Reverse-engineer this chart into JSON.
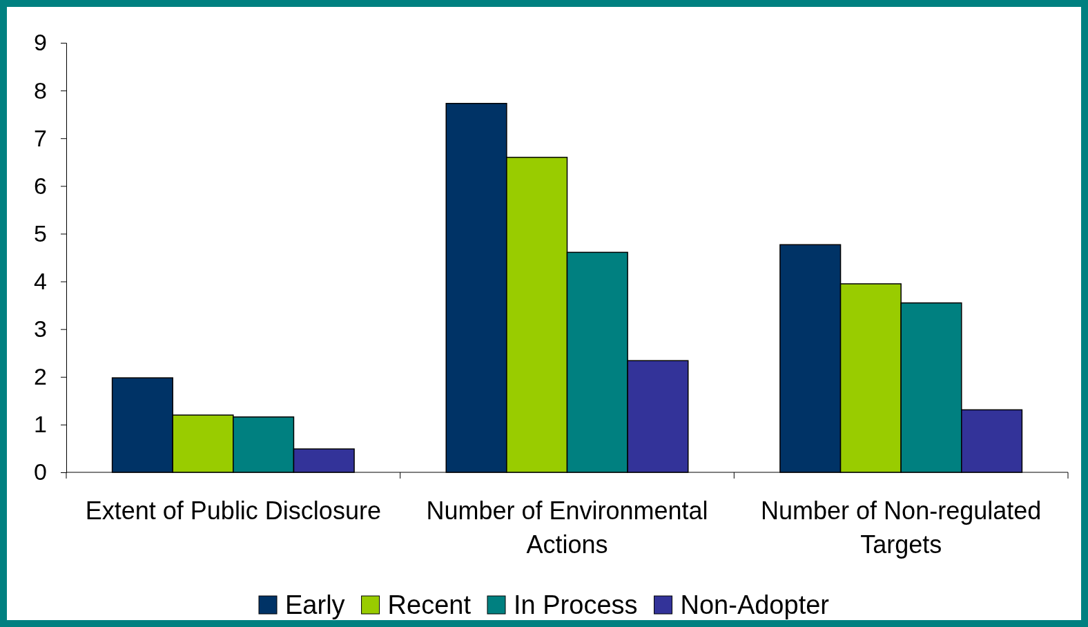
{
  "chart_data": {
    "type": "bar",
    "categories": [
      "Extent of Public Disclosure",
      "Number of Environmental Actions",
      "Number of Non-regulated Targets"
    ],
    "series": [
      {
        "name": "Early",
        "color": "#003366",
        "values": [
          1.98,
          7.73,
          4.77
        ]
      },
      {
        "name": "Recent",
        "color": "#99cc00",
        "values": [
          1.2,
          6.6,
          3.95
        ]
      },
      {
        "name": "In Process",
        "color": "#008080",
        "values": [
          1.16,
          4.61,
          3.55
        ]
      },
      {
        "name": "Non-Adopter",
        "color": "#333399",
        "values": [
          0.49,
          2.34,
          1.31
        ]
      }
    ],
    "ylim": [
      0,
      9
    ],
    "yticks": [
      0,
      1,
      2,
      3,
      4,
      5,
      6,
      7,
      8,
      9
    ],
    "grid": false,
    "legend": "bottom"
  }
}
